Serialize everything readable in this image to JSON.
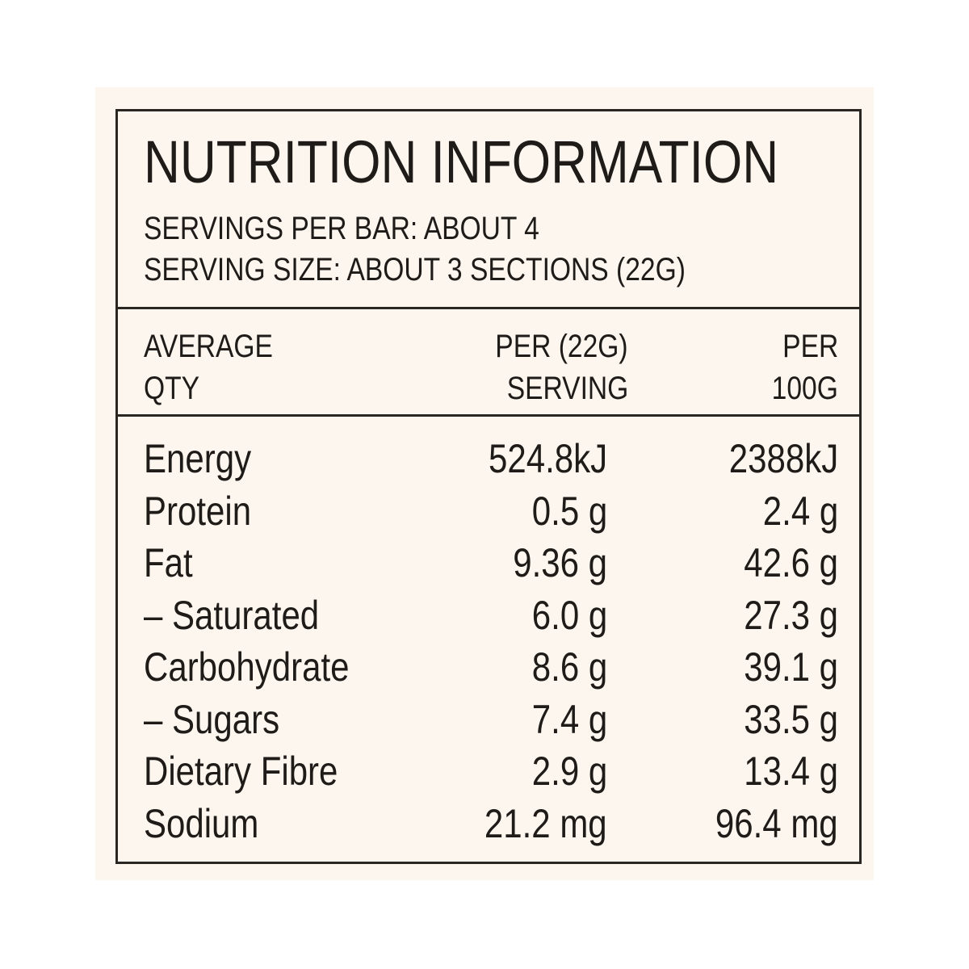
{
  "header": {
    "title": "NUTRITION INFORMATION",
    "servings_per_bar": "SERVINGS PER BAR: ABOUT 4",
    "serving_size": "SERVING SIZE: ABOUT 3 SECTIONS (22G)"
  },
  "table": {
    "columns": [
      [
        "AVERAGE",
        "QTY"
      ],
      [
        "PER (22G)",
        "SERVING"
      ],
      [
        "PER",
        "100G"
      ]
    ],
    "rows": [
      [
        "Energy",
        "524.8kJ",
        "2388kJ"
      ],
      [
        "Protein",
        "0.5 g",
        "2.4 g"
      ],
      [
        "Fat",
        "9.36 g",
        "42.6 g"
      ],
      [
        "– Saturated",
        "6.0 g",
        "27.3 g"
      ],
      [
        "Carbohydrate",
        "8.6 g",
        "39.1 g"
      ],
      [
        "– Sugars",
        "7.4 g",
        "33.5 g"
      ],
      [
        "Dietary Fibre",
        "2.9 g",
        "13.4 g"
      ],
      [
        "Sodium",
        "21.2 mg",
        "96.4 mg"
      ]
    ]
  }
}
